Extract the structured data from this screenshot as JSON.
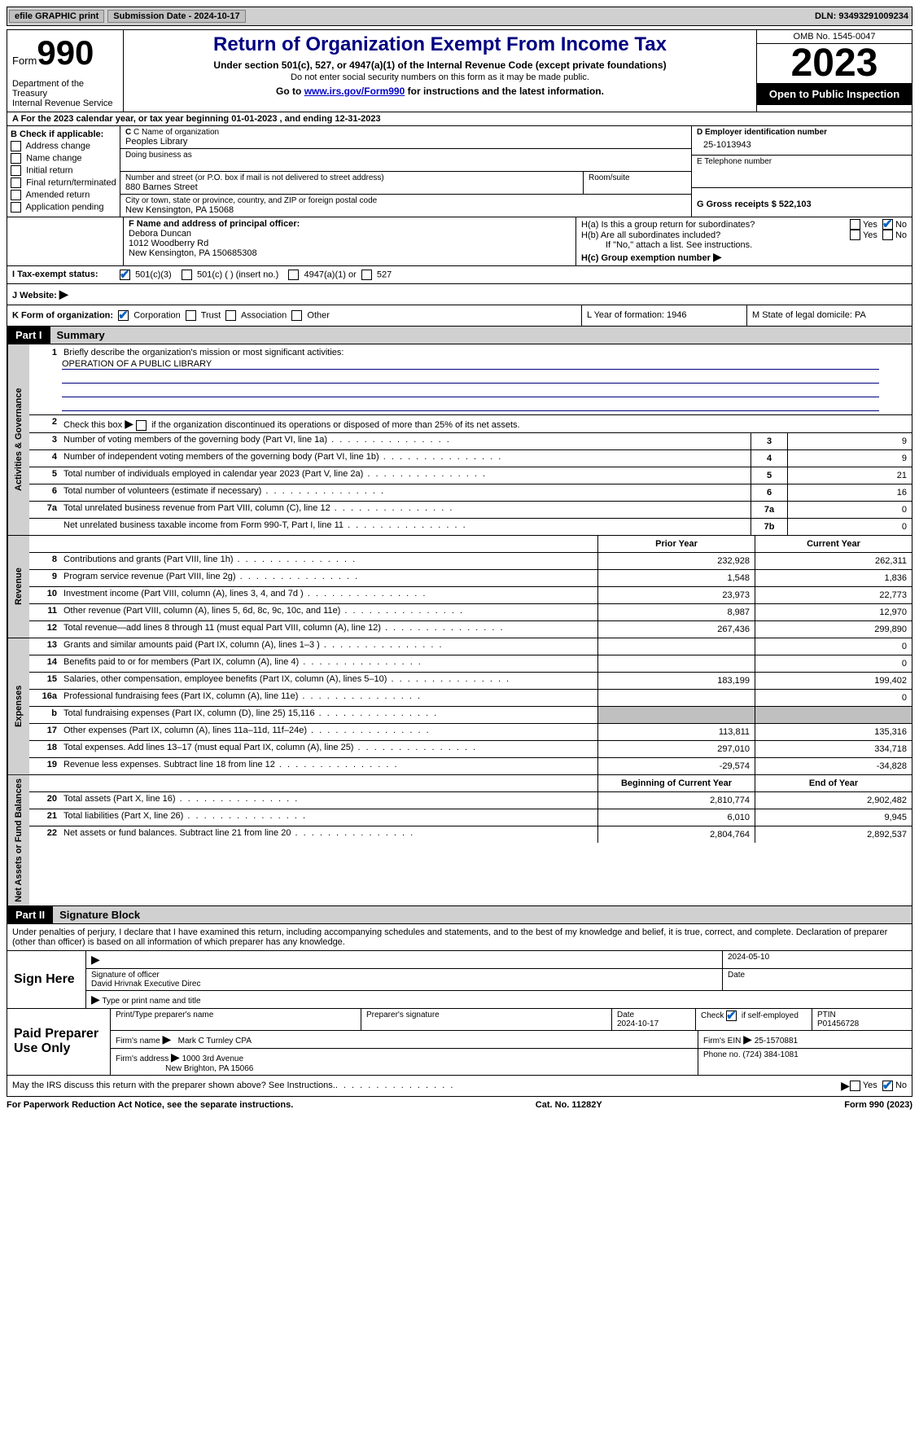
{
  "topbar": {
    "efile": "efile GRAPHIC print",
    "submission_label": "Submission Date - 2024-10-17",
    "dln_label": "DLN: 93493291009234"
  },
  "header": {
    "form_label": "Form",
    "form_number": "990",
    "dept": "Department of the Treasury",
    "irs": "Internal Revenue Service",
    "title": "Return of Organization Exempt From Income Tax",
    "subtitle": "Under section 501(c), 527, or 4947(a)(1) of the Internal Revenue Code (except private foundations)",
    "note1": "Do not enter social security numbers on this form as it may be made public.",
    "note2_prefix": "Go to ",
    "note2_link": "www.irs.gov/Form990",
    "note2_suffix": " for instructions and the latest information.",
    "omb": "OMB No. 1545-0047",
    "year": "2023",
    "inspection": "Open to Public Inspection"
  },
  "row_a": "A For the 2023 calendar year, or tax year beginning 01-01-2023   , and ending 12-31-2023",
  "box_b": {
    "label": "B Check if applicable:",
    "opts": [
      "Address change",
      "Name change",
      "Initial return",
      "Final return/terminated",
      "Amended return",
      "Application pending"
    ]
  },
  "box_c": {
    "name_label": "C Name of organization",
    "name": "Peoples Library",
    "dba_label": "Doing business as",
    "street_label": "Number and street (or P.O. box if mail is not delivered to street address)",
    "street": "880 Barnes Street",
    "room_label": "Room/suite",
    "city_label": "City or town, state or province, country, and ZIP or foreign postal code",
    "city": "New Kensington, PA  15068"
  },
  "box_d": {
    "ein_label": "D Employer identification number",
    "ein": "25-1013943",
    "phone_label": "E Telephone number",
    "gross_label": "G Gross receipts $ 522,103"
  },
  "box_f": {
    "label": "F  Name and address of principal officer:",
    "name": "Debora Duncan",
    "addr1": "1012 Woodberry Rd",
    "addr2": "New Kensington, PA  150685308"
  },
  "box_h": {
    "ha": "H(a)  Is this a group return for subordinates?",
    "hb": "H(b)  Are all subordinates included?",
    "hb_note": "If \"No,\" attach a list. See instructions.",
    "hc": "H(c)  Group exemption number ",
    "yes": "Yes",
    "no": "No"
  },
  "box_i": {
    "label": "I  Tax-exempt status:",
    "o1": "501(c)(3)",
    "o2": "501(c) (  ) (insert no.)",
    "o3": "4947(a)(1) or",
    "o4": "527"
  },
  "box_j": {
    "label": "J  Website: "
  },
  "box_k": {
    "label": "K Form of organization:",
    "o1": "Corporation",
    "o2": "Trust",
    "o3": "Association",
    "o4": "Other",
    "l": "L Year of formation: 1946",
    "m": "M State of legal domicile: PA"
  },
  "part1": {
    "label": "Part I",
    "title": "Summary",
    "line1_label": "Briefly describe the organization's mission or most significant activities:",
    "line1_value": "OPERATION OF A PUBLIC LIBRARY",
    "line2": "Check this box          if the organization discontinued its operations or disposed of more than 25% of its net assets.",
    "lines_gov": [
      {
        "n": "3",
        "d": "Number of voting members of the governing body (Part VI, line 1a)",
        "box": "3",
        "v": "9"
      },
      {
        "n": "4",
        "d": "Number of independent voting members of the governing body (Part VI, line 1b)",
        "box": "4",
        "v": "9"
      },
      {
        "n": "5",
        "d": "Total number of individuals employed in calendar year 2023 (Part V, line 2a)",
        "box": "5",
        "v": "21"
      },
      {
        "n": "6",
        "d": "Total number of volunteers (estimate if necessary)",
        "box": "6",
        "v": "16"
      },
      {
        "n": "7a",
        "d": "Total unrelated business revenue from Part VIII, column (C), line 12",
        "box": "7a",
        "v": "0"
      },
      {
        "n": "",
        "d": "Net unrelated business taxable income from Form 990-T, Part I, line 11",
        "box": "7b",
        "v": "0"
      }
    ],
    "hdr_prior": "Prior Year",
    "hdr_current": "Current Year",
    "lines_rev": [
      {
        "n": "8",
        "d": "Contributions and grants (Part VIII, line 1h)",
        "p": "232,928",
        "c": "262,311"
      },
      {
        "n": "9",
        "d": "Program service revenue (Part VIII, line 2g)",
        "p": "1,548",
        "c": "1,836"
      },
      {
        "n": "10",
        "d": "Investment income (Part VIII, column (A), lines 3, 4, and 7d )",
        "p": "23,973",
        "c": "22,773"
      },
      {
        "n": "11",
        "d": "Other revenue (Part VIII, column (A), lines 5, 6d, 8c, 9c, 10c, and 11e)",
        "p": "8,987",
        "c": "12,970"
      },
      {
        "n": "12",
        "d": "Total revenue—add lines 8 through 11 (must equal Part VIII, column (A), line 12)",
        "p": "267,436",
        "c": "299,890"
      }
    ],
    "lines_exp": [
      {
        "n": "13",
        "d": "Grants and similar amounts paid (Part IX, column (A), lines 1–3 )",
        "p": "",
        "c": "0"
      },
      {
        "n": "14",
        "d": "Benefits paid to or for members (Part IX, column (A), line 4)",
        "p": "",
        "c": "0"
      },
      {
        "n": "15",
        "d": "Salaries, other compensation, employee benefits (Part IX, column (A), lines 5–10)",
        "p": "183,199",
        "c": "199,402"
      },
      {
        "n": "16a",
        "d": "Professional fundraising fees (Part IX, column (A), line 11e)",
        "p": "",
        "c": "0"
      },
      {
        "n": "b",
        "d": "Total fundraising expenses (Part IX, column (D), line 25) 15,116",
        "p": "shaded",
        "c": "shaded"
      },
      {
        "n": "17",
        "d": "Other expenses (Part IX, column (A), lines 11a–11d, 11f–24e)",
        "p": "113,811",
        "c": "135,316"
      },
      {
        "n": "18",
        "d": "Total expenses. Add lines 13–17 (must equal Part IX, column (A), line 25)",
        "p": "297,010",
        "c": "334,718"
      },
      {
        "n": "19",
        "d": "Revenue less expenses. Subtract line 18 from line 12",
        "p": "-29,574",
        "c": "-34,828"
      }
    ],
    "hdr_begin": "Beginning of Current Year",
    "hdr_end": "End of Year",
    "lines_net": [
      {
        "n": "20",
        "d": "Total assets (Part X, line 16)",
        "p": "2,810,774",
        "c": "2,902,482"
      },
      {
        "n": "21",
        "d": "Total liabilities (Part X, line 26)",
        "p": "6,010",
        "c": "9,945"
      },
      {
        "n": "22",
        "d": "Net assets or fund balances. Subtract line 21 from line 20",
        "p": "2,804,764",
        "c": "2,892,537"
      }
    ],
    "tab_gov": "Activities & Governance",
    "tab_rev": "Revenue",
    "tab_exp": "Expenses",
    "tab_net": "Net Assets or Fund Balances"
  },
  "part2": {
    "label": "Part II",
    "title": "Signature Block",
    "perjury": "Under penalties of perjury, I declare that I have examined this return, including accompanying schedules and statements, and to the best of my knowledge and belief, it is true, correct, and complete. Declaration of preparer (other than officer) is based on all information of which preparer has any knowledge.",
    "sign_here": "Sign Here",
    "sig_date": "2024-05-10",
    "sig_officer_label": "Signature of officer",
    "sig_officer": "David Hrivnak  Executive Direc",
    "sig_type_label": "Type or print name and title",
    "date_label": "Date",
    "paid": "Paid Preparer Use Only",
    "prep_name_label": "Print/Type preparer's name",
    "prep_sig_label": "Preparer's signature",
    "prep_date": "2024-10-17",
    "self_emp": "Check          if self-employed",
    "ptin_label": "PTIN",
    "ptin": "P01456728",
    "firm_name_label": "Firm's name",
    "firm_name": "Mark C Turnley CPA",
    "firm_ein_label": "Firm's EIN",
    "firm_ein": "25-1570881",
    "firm_addr_label": "Firm's address",
    "firm_addr1": "1000 3rd Avenue",
    "firm_addr2": "New Brighton, PA  15066",
    "firm_phone_label": "Phone no.",
    "firm_phone": "(724) 384-1081",
    "discuss": "May the IRS discuss this return with the preparer shown above? See Instructions.",
    "yes": "Yes",
    "no": "No"
  },
  "footer": {
    "paperwork": "For Paperwork Reduction Act Notice, see the separate instructions.",
    "cat": "Cat. No. 11282Y",
    "form": "Form 990 (2023)"
  }
}
